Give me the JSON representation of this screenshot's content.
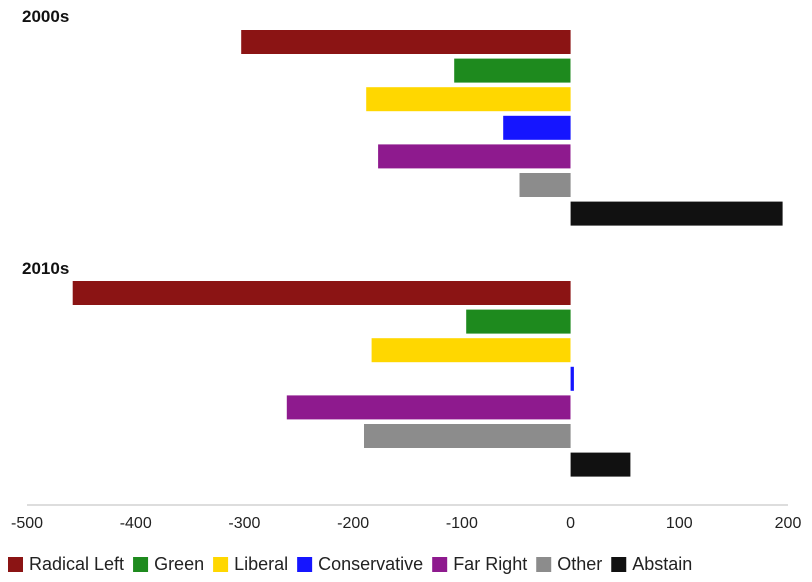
{
  "chart_data": {
    "type": "bar",
    "orientation": "horizontal",
    "categories": [
      "Radical Left",
      "Green",
      "Liberal",
      "Conservative",
      "Far Right",
      "Other",
      "Abstain"
    ],
    "colors": [
      "#8b1414",
      "#1e8a1e",
      "#ffd700",
      "#1515ff",
      "#8e1a8e",
      "#8c8c8c",
      "#111111"
    ],
    "panels": [
      {
        "title": "2000s",
        "values": [
          -303,
          -107,
          -188,
          -62,
          -177,
          -47,
          195
        ]
      },
      {
        "title": "2010s",
        "values": [
          -458,
          -96,
          -183,
          3,
          -261,
          -190,
          55
        ]
      }
    ],
    "xlim": [
      -500,
      200
    ],
    "xticks": [
      -500,
      -400,
      -300,
      -200,
      -100,
      0,
      100,
      200
    ],
    "xlabel": "",
    "ylabel": "",
    "grid": false,
    "legend": {
      "position": "bottom",
      "items": [
        "Radical Left",
        "Green",
        "Liberal",
        "Conservative",
        "Far Right",
        "Other",
        "Abstain"
      ]
    }
  }
}
